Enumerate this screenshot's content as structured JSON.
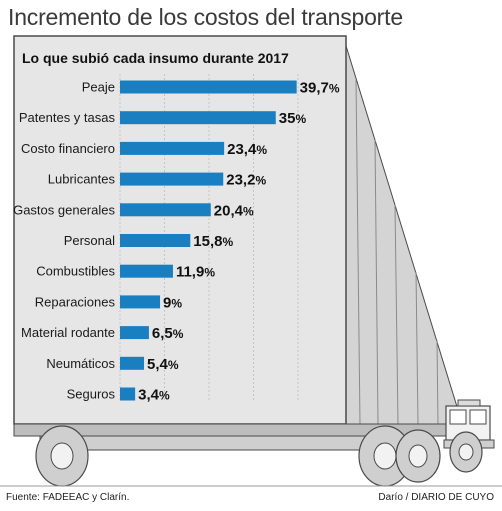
{
  "title": "Incremento de los costos del transporte",
  "subtitle": "Lo que subió cada insumo durante 2017",
  "source": "Fuente: FADEEAC y Clarín.",
  "credit": "Darío / DIARIO DE CUYO",
  "colors": {
    "bar": "#1a7fc1",
    "grid": "#bdbdbd",
    "trailer": "#d9d9d9",
    "outline": "#4a4a4a"
  },
  "chart_data": {
    "type": "bar",
    "orientation": "horizontal",
    "title": "Lo que subió cada insumo durante 2017",
    "categories": [
      "Peaje",
      "Patentes y tasas",
      "Costo financiero",
      "Lubricantes",
      "Gastos generales",
      "Personal",
      "Combustibles",
      "Reparaciones",
      "Material rodante",
      "Neumáticos",
      "Seguros"
    ],
    "values": [
      39.7,
      35,
      23.4,
      23.2,
      20.4,
      15.8,
      11.9,
      9,
      6.5,
      5.4,
      3.4
    ],
    "value_labels": [
      "39,7",
      "35",
      "23,4",
      "23,2",
      "20,4",
      "15,8",
      "11,9",
      "9",
      "6,5",
      "5,4",
      "3,4"
    ],
    "unit": "%",
    "xlim": [
      0,
      40
    ],
    "grid": true,
    "xlabel": "",
    "ylabel": ""
  }
}
